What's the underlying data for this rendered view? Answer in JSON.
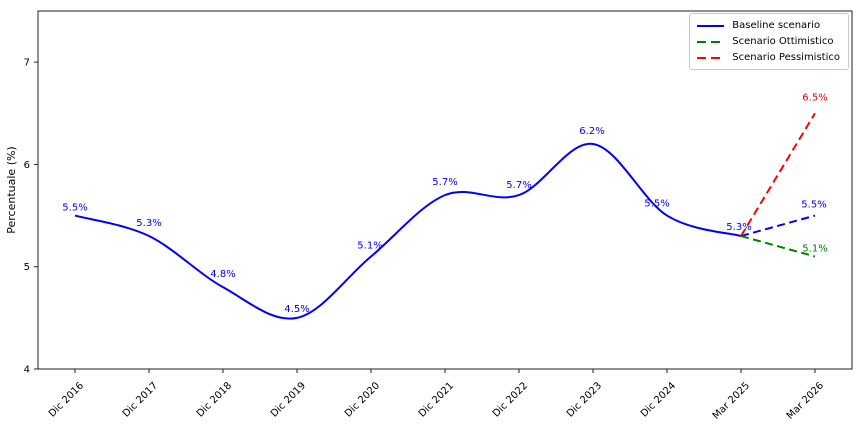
{
  "chart_data": {
    "type": "line",
    "title": "",
    "xlabel": "",
    "ylabel": "Percentuale (%)",
    "categories": [
      "Dic 2016",
      "Dic 2017",
      "Dic 2018",
      "Dic 2019",
      "Dic 2020",
      "Dic 2021",
      "Dic 2022",
      "Dic 2023",
      "Dic 2024",
      "Mar 2025",
      "Mar 2026"
    ],
    "yticks": [
      4,
      5,
      6,
      7
    ],
    "ylim": [
      4,
      7.5
    ],
    "grid": false,
    "legend_position": "upper right",
    "axis_color": "#222222",
    "tick_label_color": "#000000",
    "series": [
      {
        "name": "Baseline scenario",
        "color": "#0000ff",
        "line_style": "solid",
        "smooth": true,
        "x_indices": [
          0,
          1,
          2,
          3,
          4,
          5,
          6,
          7,
          8,
          9
        ],
        "values": [
          5.5,
          5.3,
          4.8,
          4.5,
          5.1,
          5.7,
          5.7,
          6.2,
          5.5,
          5.3
        ],
        "point_labels": [
          "5.5%",
          "5.3%",
          "4.8%",
          "4.5%",
          "5.1%",
          "5.7%",
          "5.7%",
          "6.2%",
          "5.5%",
          "5.3%"
        ]
      },
      {
        "name": "Baseline scenario",
        "color": "#0000ff",
        "line_style": "dashed",
        "smooth": false,
        "x_indices": [
          9,
          10
        ],
        "values": [
          5.3,
          5.5
        ],
        "point_labels": [
          "",
          "5.5%"
        ]
      },
      {
        "name": "Scenario Ottimistico",
        "color": "#008000",
        "line_style": "dashed",
        "smooth": false,
        "x_indices": [
          9,
          10
        ],
        "values": [
          5.3,
          5.1
        ],
        "point_labels": [
          "",
          "5.1%"
        ]
      },
      {
        "name": "Scenario Pessimistico",
        "color": "#ff0000",
        "line_style": "dashed",
        "smooth": false,
        "x_indices": [
          9,
          10
        ],
        "values": [
          5.3,
          6.5
        ],
        "point_labels": [
          "",
          "6.5%"
        ]
      }
    ],
    "legend": {
      "items": [
        {
          "label": "Baseline scenario",
          "color": "#0000ff",
          "line_style": "solid"
        },
        {
          "label": "Scenario Ottimistico",
          "color": "#008000",
          "line_style": "dashed"
        },
        {
          "label": "Scenario Pessimistico",
          "color": "#ff0000",
          "line_style": "dashed"
        }
      ]
    }
  }
}
